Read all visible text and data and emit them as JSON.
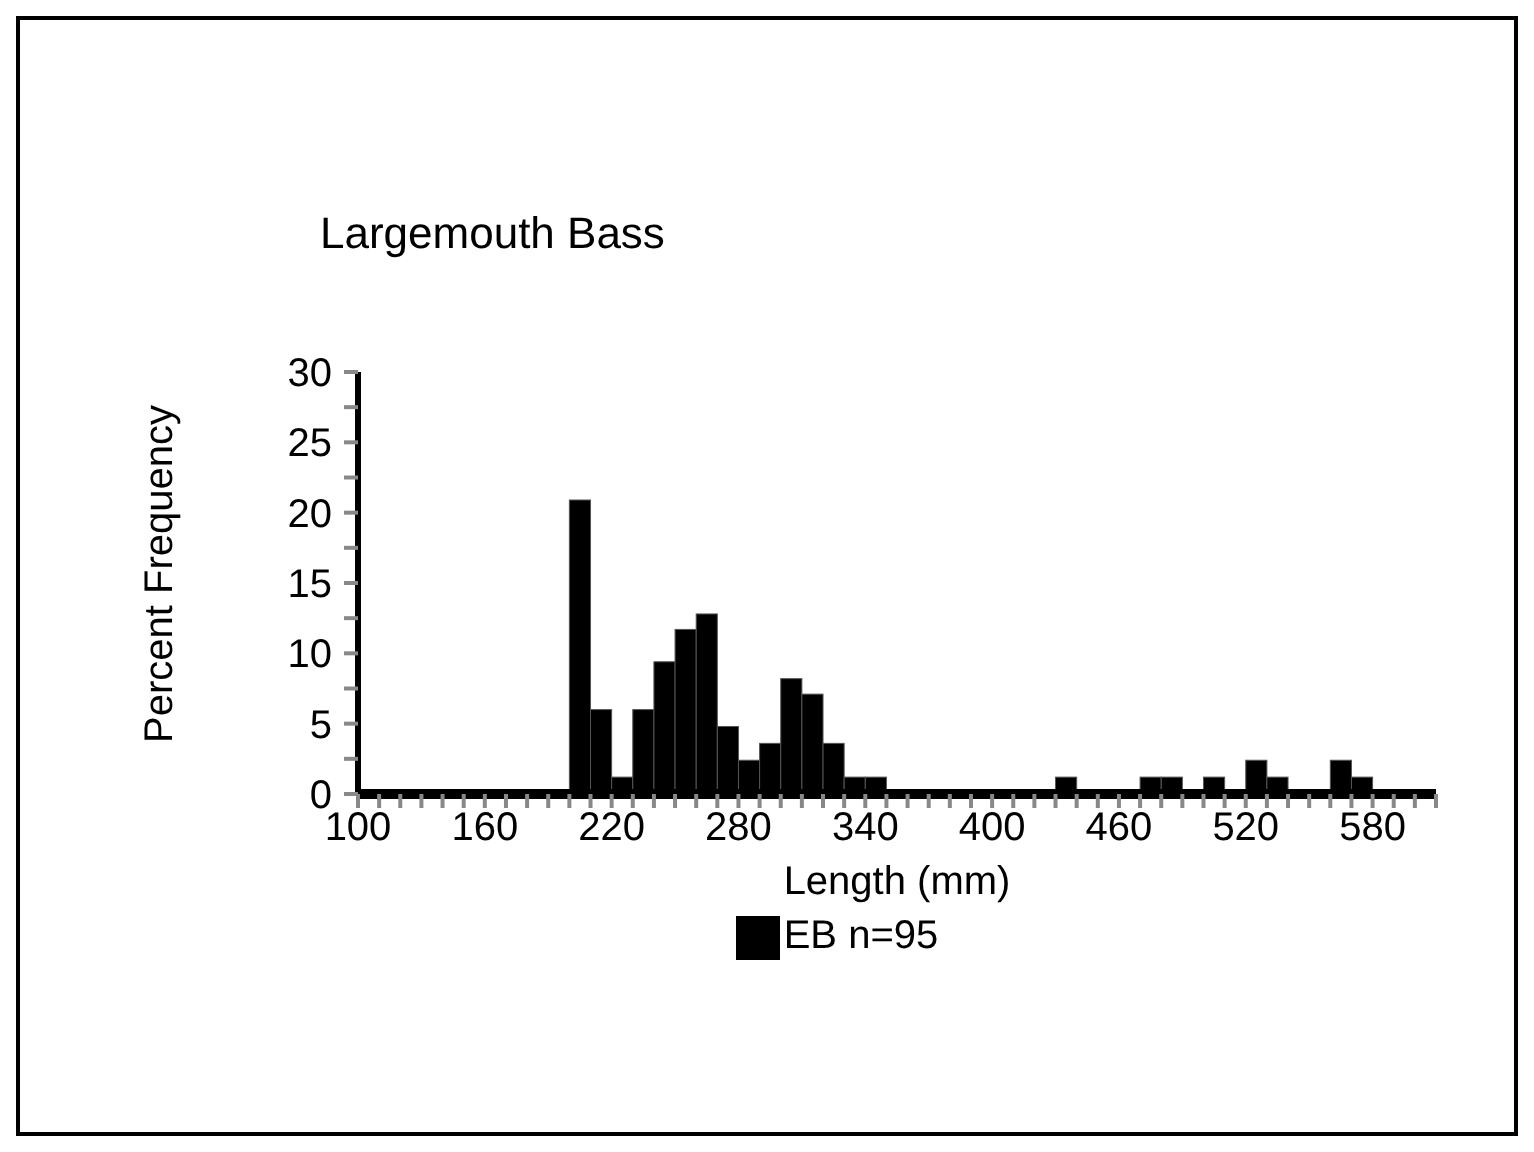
{
  "chart_data": {
    "type": "histogram",
    "title": "Largemouth Bass",
    "xlabel": "Length (mm)",
    "ylabel": "Percent Frequency",
    "bins": [
      100,
      110,
      120,
      130,
      140,
      150,
      160,
      170,
      180,
      190,
      200,
      210,
      220,
      230,
      240,
      250,
      260,
      270,
      280,
      290,
      300,
      310,
      320,
      330,
      340,
      350,
      360,
      370,
      380,
      390,
      400,
      410,
      420,
      430,
      440,
      450,
      460,
      470,
      480,
      490,
      500,
      510,
      520,
      530,
      540,
      550,
      560,
      570,
      580,
      590,
      600,
      610
    ],
    "series": [
      {
        "name": "EB n=95",
        "color": "#000000",
        "values": [
          0,
          0,
          0,
          0,
          0,
          0,
          0,
          0,
          0,
          0,
          20.9,
          6.0,
          1.2,
          6.0,
          9.4,
          11.7,
          12.8,
          4.8,
          2.4,
          3.6,
          8.2,
          7.1,
          3.6,
          1.2,
          1.2,
          0,
          0,
          0,
          0,
          0,
          0,
          0,
          0,
          1.2,
          0,
          0,
          0,
          1.2,
          1.2,
          0,
          1.2,
          0,
          2.4,
          1.2,
          0,
          0,
          2.4,
          1.2,
          0,
          0,
          0
        ]
      }
    ],
    "xlim": [
      100,
      610
    ],
    "xticks": [
      100,
      {
        "value": 110,
        "label": null
      },
      {
        "value": 120,
        "label": null
      },
      {
        "value": 130,
        "label": null
      },
      {
        "value": 140,
        "label": null
      },
      {
        "value": 150,
        "label": null
      },
      160,
      {
        "value": 170,
        "label": null
      },
      {
        "value": 180,
        "label": null
      },
      {
        "value": 190,
        "label": null
      },
      {
        "value": 200,
        "label": null
      },
      {
        "value": 210,
        "label": null
      },
      220,
      {
        "value": 230,
        "label": null
      },
      {
        "value": 240,
        "label": null
      },
      {
        "value": 250,
        "label": null
      },
      {
        "value": 260,
        "label": null
      },
      {
        "value": 270,
        "label": null
      },
      280,
      {
        "value": 290,
        "label": null
      },
      {
        "value": 300,
        "label": null
      },
      {
        "value": 310,
        "label": null
      },
      {
        "value": 320,
        "label": null
      },
      {
        "value": 330,
        "label": null
      },
      340,
      {
        "value": 350,
        "label": null
      },
      {
        "value": 360,
        "label": null
      },
      {
        "value": 370,
        "label": null
      },
      {
        "value": 380,
        "label": null
      },
      {
        "value": 390,
        "label": null
      },
      400,
      {
        "value": 410,
        "label": null
      },
      {
        "value": 420,
        "label": null
      },
      {
        "value": 430,
        "label": null
      },
      {
        "value": 440,
        "label": null
      },
      {
        "value": 450,
        "label": null
      },
      460,
      {
        "value": 470,
        "label": null
      },
      {
        "value": 480,
        "label": null
      },
      {
        "value": 490,
        "label": null
      },
      {
        "value": 500,
        "label": null
      },
      {
        "value": 510,
        "label": null
      },
      520,
      {
        "value": 530,
        "label": null
      },
      {
        "value": 540,
        "label": null
      },
      {
        "value": 550,
        "label": null
      },
      {
        "value": 560,
        "label": null
      },
      {
        "value": 570,
        "label": null
      },
      580,
      {
        "value": 590,
        "label": null
      },
      {
        "value": 600,
        "label": null
      },
      {
        "value": 610,
        "label": null
      }
    ],
    "ylim": [
      0,
      30
    ],
    "yticks": [
      0,
      {
        "value": 2.5,
        "label": null
      },
      5,
      {
        "value": 7.5,
        "label": null
      },
      10,
      {
        "value": 12.5,
        "label": null
      },
      15,
      {
        "value": 17.5,
        "label": null
      },
      20,
      {
        "value": 22.5,
        "label": null
      },
      25,
      {
        "value": 27.5,
        "label": null
      },
      30
    ],
    "grid": false,
    "legend": "bottom"
  }
}
